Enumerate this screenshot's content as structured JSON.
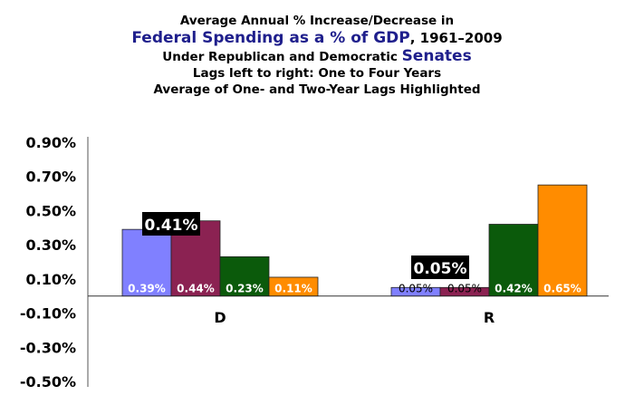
{
  "chart_title": {
    "line1": "Average Annual % Increase/Decrease in",
    "line2_highlight": "Federal Spending as a % of GDP",
    "line2_rest": ", 1961–2009",
    "line3_prefix": "Under Republican and Democratic ",
    "line3_highlight": "Senates",
    "line4": "Lags left to right: One to Four Years",
    "line5": "Average of One- and Two-Year Lags Highlighted"
  },
  "chart_data": {
    "type": "bar",
    "categories": [
      "D",
      "R"
    ],
    "series": [
      {
        "values": [
          0.39,
          0.05
        ],
        "labels": [
          "0.39%",
          "0.05%"
        ],
        "color": "#8080ff"
      },
      {
        "values": [
          0.44,
          0.05
        ],
        "labels": [
          "0.44%",
          "0.05%"
        ],
        "color": "#8b2252"
      },
      {
        "values": [
          0.23,
          0.42
        ],
        "labels": [
          "0.23%",
          "0.42%"
        ],
        "color": "#0b5a0b"
      },
      {
        "values": [
          0.11,
          0.65
        ],
        "labels": [
          "0.11%",
          "0.65%"
        ],
        "color": "#ff8c00"
      }
    ],
    "averages": [
      {
        "category": "D",
        "value": 0.41,
        "label": "0.41%"
      },
      {
        "category": "R",
        "value": 0.05,
        "label": "0.05%"
      }
    ],
    "ylim": [
      -0.5,
      0.9
    ],
    "yticks": [
      0.9,
      0.7,
      0.5,
      0.3,
      0.1,
      -0.1,
      -0.3,
      -0.5
    ],
    "ytick_labels": [
      "0.90%",
      "0.70%",
      "0.50%",
      "0.30%",
      "0.10%",
      "-0.10%",
      "-0.30%",
      "-0.50%"
    ],
    "grid": false,
    "legend": "none"
  }
}
